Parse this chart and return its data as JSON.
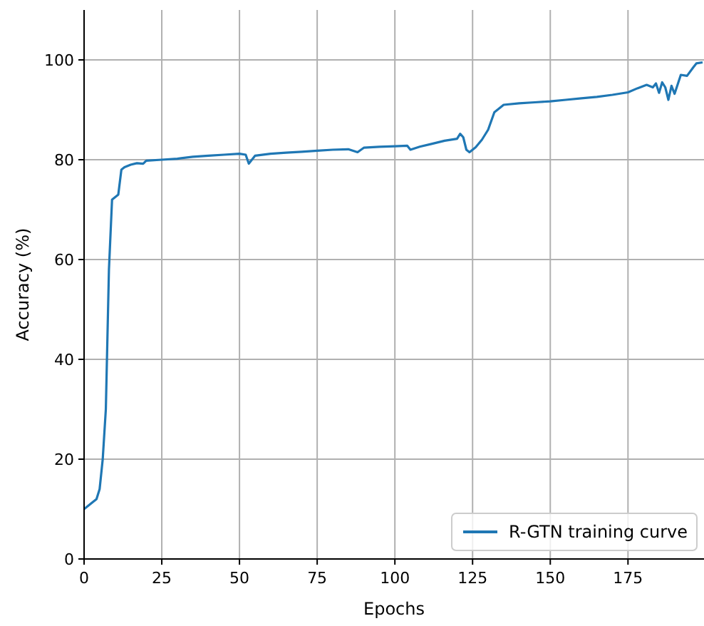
{
  "chart_data": {
    "type": "line",
    "xlabel": "Epochs",
    "ylabel": "Accuracy (%)",
    "xlim": [
      0,
      199
    ],
    "ylim": [
      0,
      110
    ],
    "xticks": [
      0,
      25,
      50,
      75,
      100,
      125,
      150,
      175
    ],
    "yticks": [
      0,
      20,
      40,
      60,
      80,
      100
    ],
    "grid": true,
    "legend": "bottom right",
    "series": [
      {
        "name": "R-GTN training curve",
        "color": "#1f77b4",
        "x": [
          0,
          2,
          4,
          5,
          6,
          7,
          8,
          9,
          10,
          11,
          12,
          13,
          15,
          17,
          19,
          20,
          25,
          30,
          35,
          40,
          45,
          50,
          52,
          53,
          55,
          60,
          65,
          70,
          75,
          80,
          85,
          88,
          90,
          95,
          100,
          104,
          105,
          108,
          112,
          116,
          120,
          121,
          122,
          123,
          124,
          126,
          128,
          130,
          132,
          135,
          140,
          145,
          150,
          155,
          160,
          165,
          170,
          175,
          178,
          181,
          183,
          184,
          185,
          186,
          187,
          188,
          189,
          190,
          192,
          194,
          196,
          197,
          199
        ],
        "values": [
          10,
          11,
          12,
          14,
          20,
          30,
          58,
          72,
          72.5,
          73,
          78,
          78.5,
          79,
          79.3,
          79.2,
          79.8,
          80,
          80.2,
          80.6,
          80.8,
          81,
          81.2,
          81,
          79.2,
          80.8,
          81.2,
          81.4,
          81.6,
          81.8,
          82,
          82.1,
          81.5,
          82.4,
          82.6,
          82.7,
          82.8,
          82,
          82.6,
          83.2,
          83.8,
          84.2,
          85.2,
          84.5,
          82,
          81.5,
          82.5,
          84,
          86,
          89.5,
          91,
          91.3,
          91.5,
          91.7,
          92,
          92.3,
          92.6,
          93,
          93.5,
          94.3,
          95,
          94.5,
          95.3,
          93.4,
          95.5,
          94.5,
          92,
          94.8,
          93.2,
          97,
          96.8,
          98.5,
          99.3,
          99.5
        ]
      }
    ]
  }
}
